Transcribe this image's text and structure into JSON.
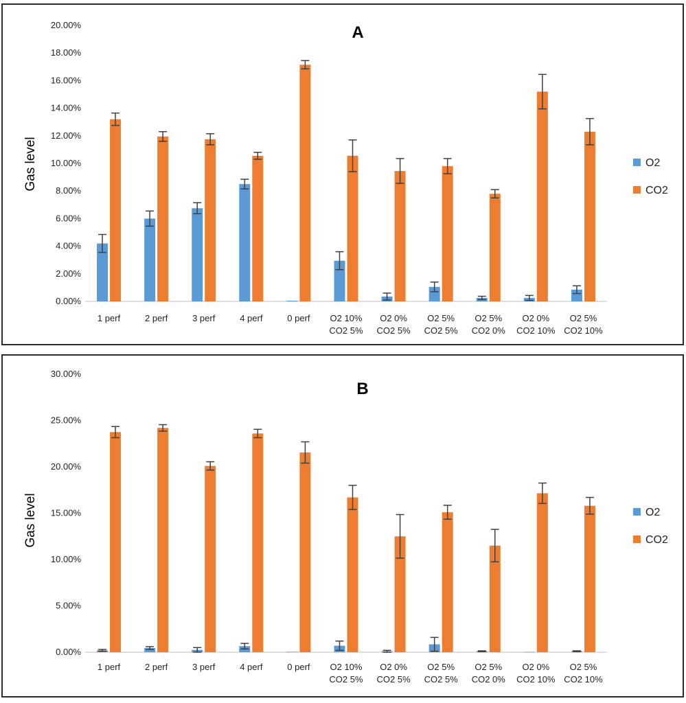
{
  "chart_data": [
    {
      "type": "bar",
      "title": "A",
      "ylabel": "Gas level",
      "xlabel": "",
      "ylim": [
        0,
        20
      ],
      "ytick_step": 2,
      "ytick_decimals": 2,
      "categories": [
        [
          "1 perf"
        ],
        [
          "2 perf"
        ],
        [
          "3 perf"
        ],
        [
          "4 perf"
        ],
        [
          "0 perf"
        ],
        [
          "O2 10%",
          "CO2 5%"
        ],
        [
          "O2 0%",
          "CO2 5%"
        ],
        [
          "O2 5%",
          "CO2 5%"
        ],
        [
          "O2 5%",
          "CO2 0%"
        ],
        [
          "O2 0%",
          "CO2 10%"
        ],
        [
          "O2 5%",
          "CO2 10%"
        ]
      ],
      "series": [
        {
          "name": "O2",
          "color": "#5B9BD5",
          "values": [
            4.2,
            6.0,
            6.75,
            8.5,
            0.05,
            2.95,
            0.35,
            1.05,
            0.25,
            0.25,
            0.85
          ],
          "errors": [
            0.65,
            0.55,
            0.4,
            0.35,
            0.0,
            0.65,
            0.25,
            0.35,
            0.12,
            0.18,
            0.28
          ]
        },
        {
          "name": "CO2",
          "color": "#ED7D31",
          "values": [
            13.2,
            11.95,
            11.75,
            10.55,
            17.15,
            10.55,
            9.45,
            9.8,
            7.8,
            15.2,
            12.3
          ],
          "errors": [
            0.45,
            0.35,
            0.4,
            0.25,
            0.3,
            1.15,
            0.9,
            0.55,
            0.3,
            1.25,
            0.95
          ]
        }
      ],
      "legend": "right"
    },
    {
      "type": "bar",
      "title": "B",
      "ylabel": "Gas level",
      "xlabel": "",
      "ylim": [
        0,
        30
      ],
      "ytick_step": 5,
      "ytick_decimals": 2,
      "categories": [
        [
          "1 perf"
        ],
        [
          "2 perf"
        ],
        [
          "3 perf"
        ],
        [
          "4 perf"
        ],
        [
          "0 perf"
        ],
        [
          "O2 10%",
          "CO2 5%"
        ],
        [
          "O2 0%",
          "CO2 5%"
        ],
        [
          "O2 5%",
          "CO2 5%"
        ],
        [
          "O2 5%",
          "CO2 0%"
        ],
        [
          "O2 0%",
          "CO2 10%"
        ],
        [
          "O2 5%",
          "CO2 10%"
        ]
      ],
      "series": [
        {
          "name": "O2",
          "color": "#5B9BD5",
          "values": [
            0.2,
            0.45,
            0.25,
            0.65,
            0.05,
            0.7,
            0.1,
            0.85,
            0.1,
            0.03,
            0.1
          ],
          "errors": [
            0.1,
            0.15,
            0.25,
            0.3,
            0.0,
            0.5,
            0.1,
            0.75,
            0.05,
            0.0,
            0.05
          ]
        },
        {
          "name": "CO2",
          "color": "#ED7D31",
          "values": [
            23.75,
            24.2,
            20.1,
            23.6,
            21.55,
            16.7,
            12.5,
            15.1,
            11.5,
            17.15,
            15.8
          ],
          "errors": [
            0.6,
            0.35,
            0.45,
            0.45,
            1.15,
            1.3,
            2.35,
            0.75,
            1.75,
            1.1,
            0.9
          ]
        }
      ],
      "legend": "right"
    }
  ]
}
